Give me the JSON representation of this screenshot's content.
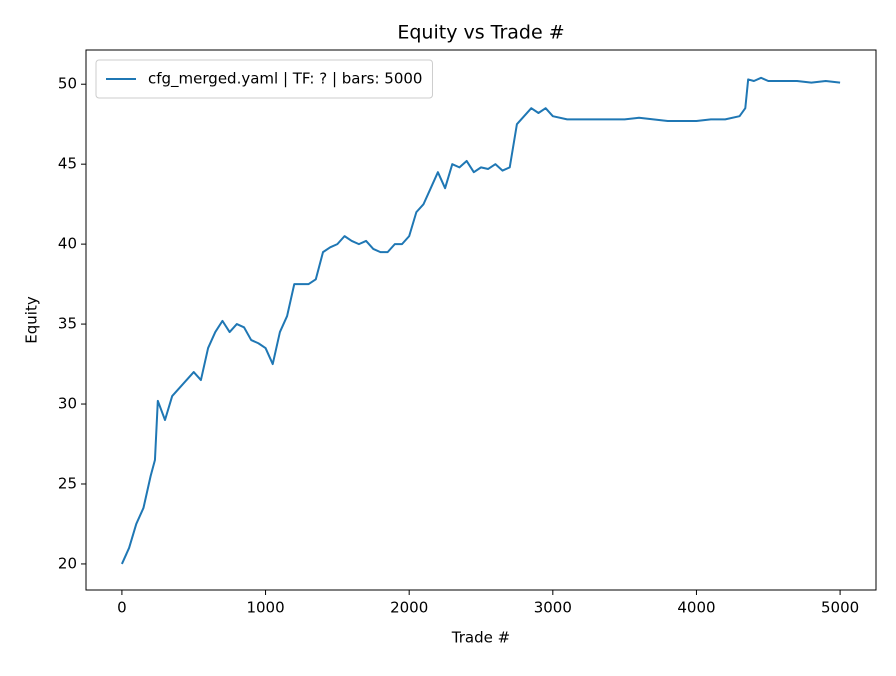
{
  "chart_data": {
    "type": "line",
    "title": "Equity vs Trade #",
    "x_label": "Trade #",
    "y_label": "Equity",
    "x": [
      0,
      50,
      100,
      150,
      200,
      230,
      250,
      300,
      350,
      400,
      450,
      500,
      550,
      600,
      650,
      700,
      750,
      800,
      850,
      900,
      950,
      1000,
      1050,
      1100,
      1150,
      1200,
      1250,
      1300,
      1350,
      1400,
      1450,
      1500,
      1550,
      1600,
      1650,
      1700,
      1750,
      1800,
      1850,
      1900,
      1950,
      2000,
      2050,
      2100,
      2150,
      2200,
      2250,
      2300,
      2350,
      2400,
      2450,
      2500,
      2550,
      2600,
      2650,
      2700,
      2750,
      2800,
      2850,
      2900,
      2950,
      3000,
      3100,
      3300,
      3500,
      3600,
      3700,
      3800,
      3900,
      4000,
      4100,
      4200,
      4300,
      4340,
      4360,
      4400,
      4450,
      4500,
      4600,
      4700,
      4800,
      4900,
      5000
    ],
    "series": [
      {
        "name": "cfg_merged.yaml | TF: ? | bars: 5000",
        "color": "#1f77b4",
        "values": [
          20,
          21,
          22.5,
          23.5,
          25.5,
          26.5,
          30.2,
          29,
          30.5,
          31,
          31.5,
          32,
          31.5,
          33.5,
          34.5,
          35.2,
          34.5,
          35,
          34.8,
          34,
          33.8,
          33.5,
          32.5,
          34.5,
          35.5,
          37.5,
          37.5,
          37.5,
          37.8,
          39.5,
          39.8,
          40,
          40.5,
          40.2,
          40,
          40.2,
          39.7,
          39.5,
          39.5,
          40,
          40,
          40.5,
          42,
          42.5,
          43.5,
          44.5,
          43.5,
          45,
          44.8,
          45.2,
          44.5,
          44.8,
          44.7,
          45,
          44.6,
          44.8,
          47.5,
          48,
          48.5,
          48.2,
          48.5,
          48,
          47.8,
          47.8,
          47.8,
          47.9,
          47.8,
          47.7,
          47.7,
          47.7,
          47.8,
          47.8,
          48,
          48.5,
          50.3,
          50.2,
          50.4,
          50.2,
          50.2,
          50.2,
          50.1,
          50.2,
          50.1
        ]
      }
    ],
    "xlim": [
      -250,
      5250
    ],
    "ylim": [
      18.37,
      52.14
    ],
    "xticks": [
      0,
      1000,
      2000,
      3000,
      4000,
      5000
    ],
    "yticks": [
      20,
      25,
      30,
      35,
      40,
      45,
      50
    ],
    "grid": false,
    "legend": "upper left"
  }
}
